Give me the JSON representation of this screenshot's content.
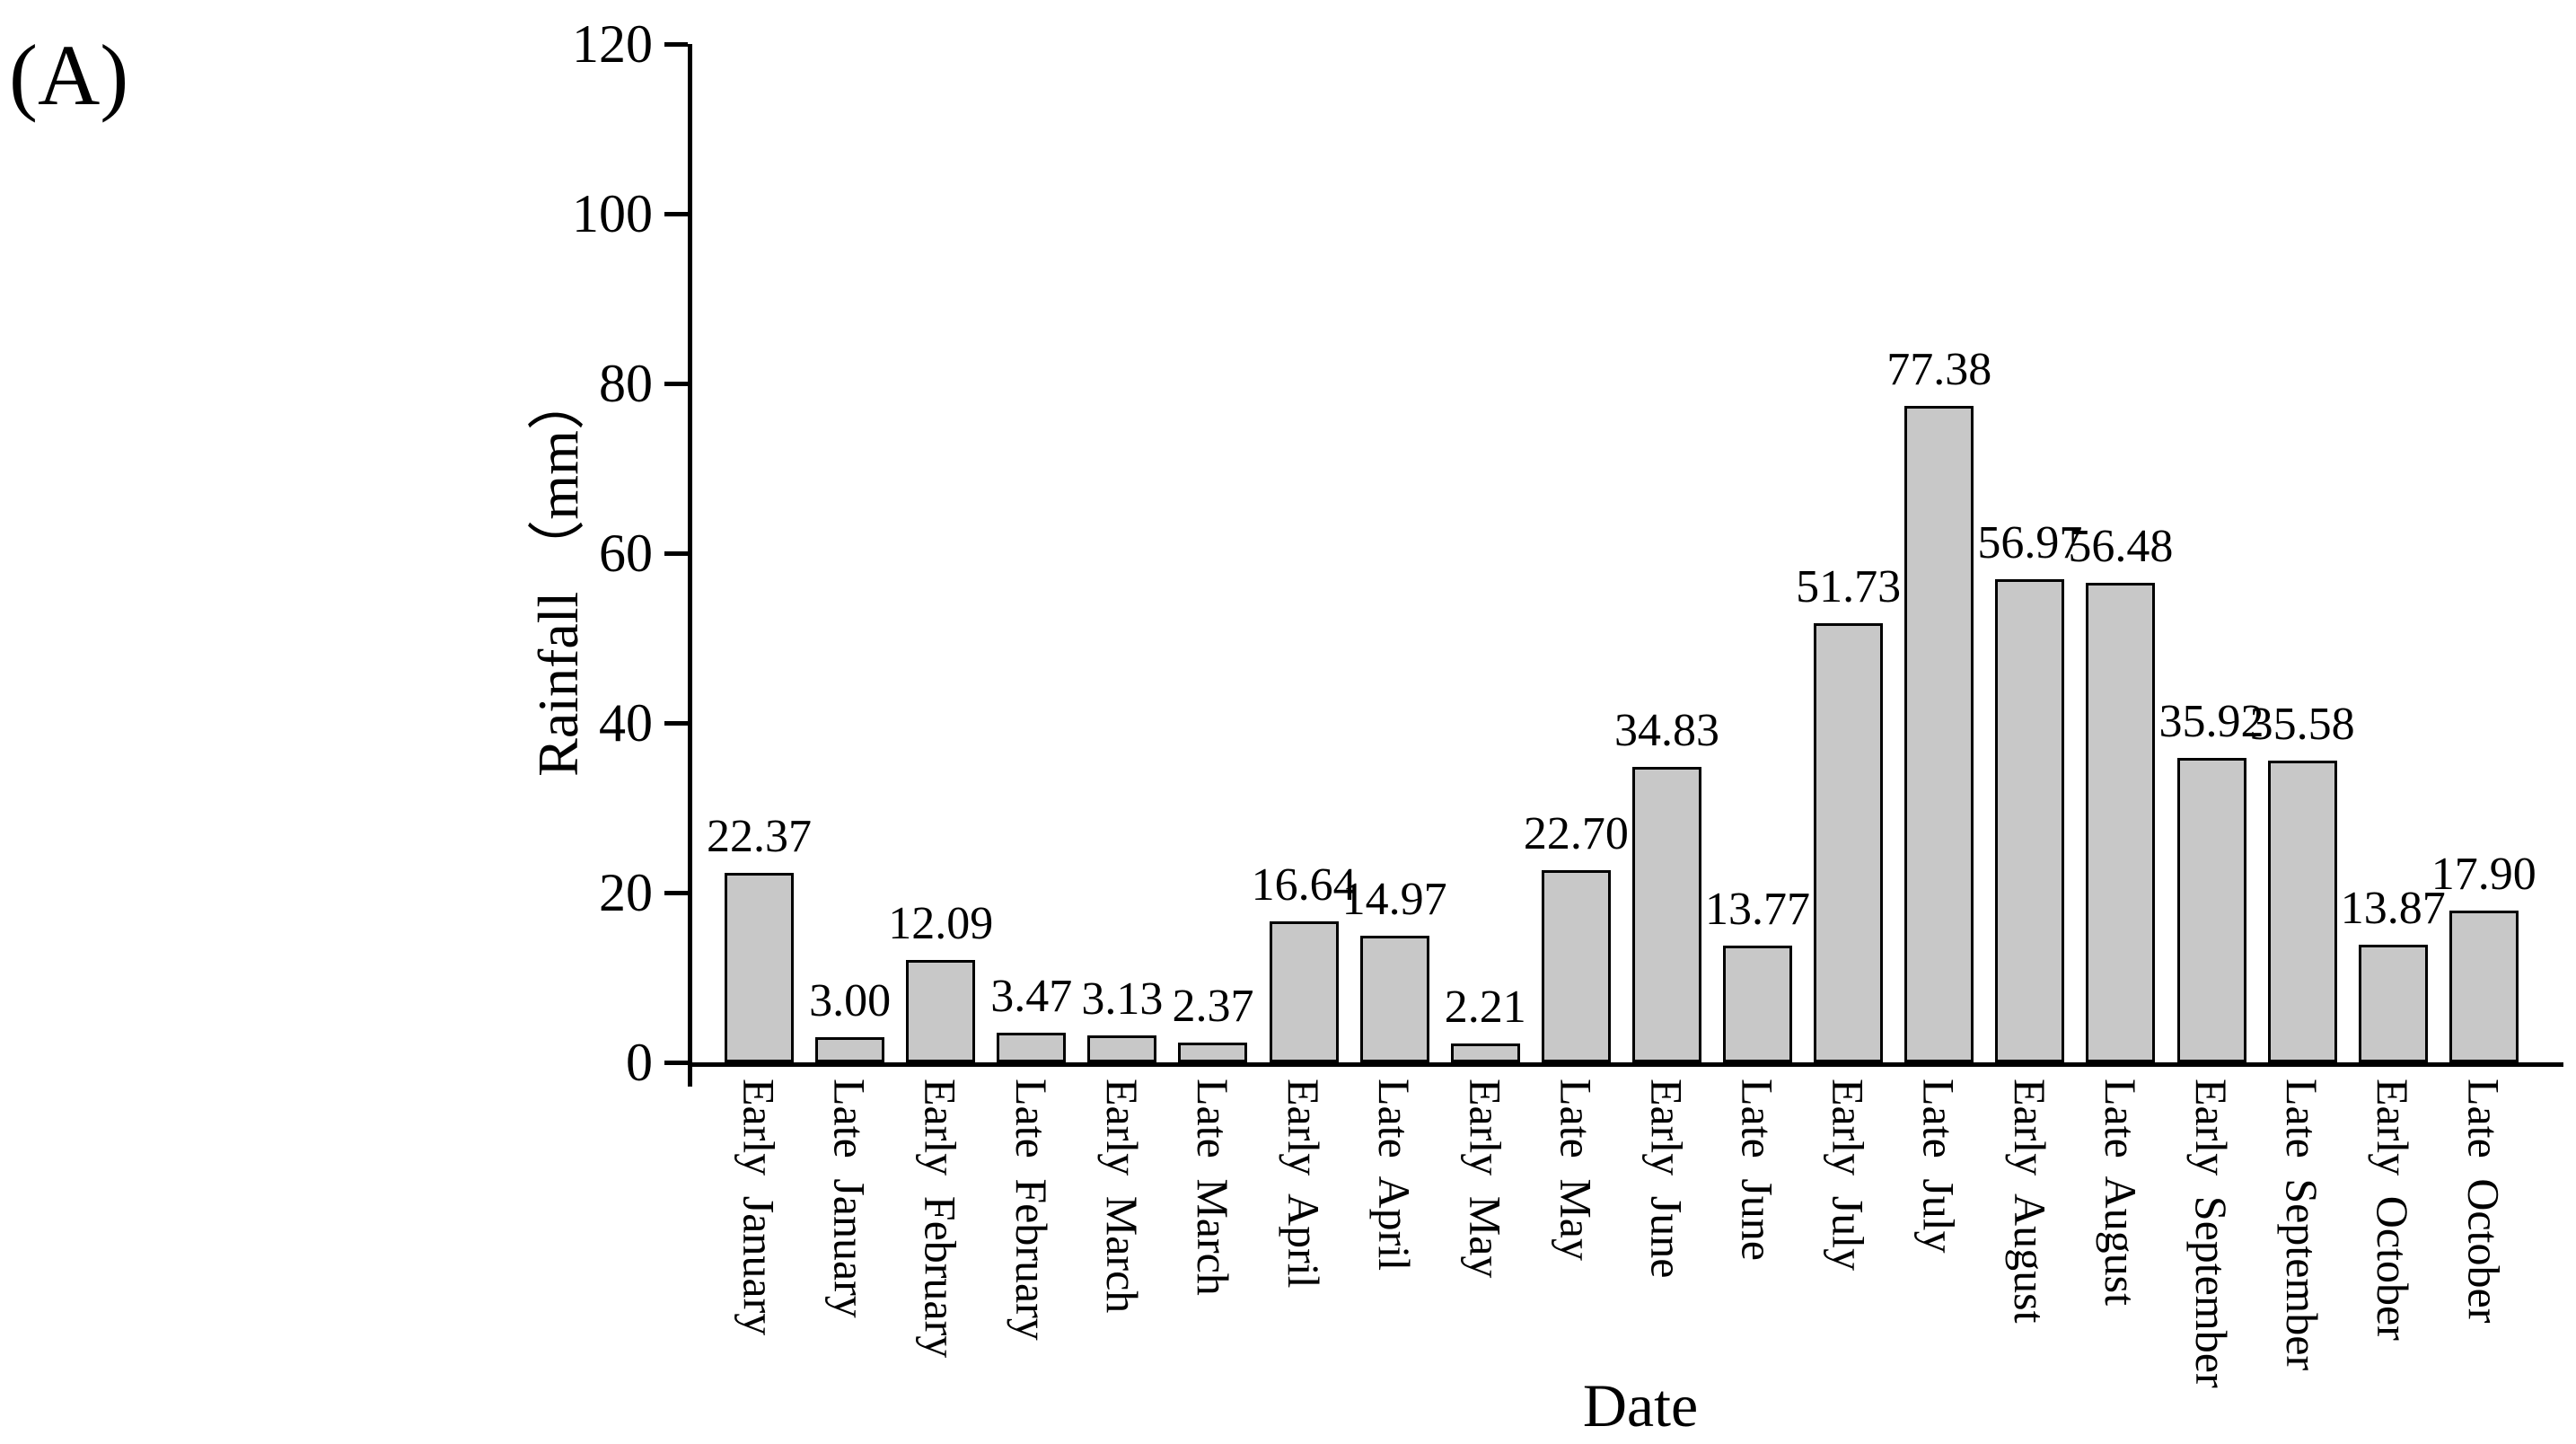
{
  "panel_label": "(A)",
  "chart_data": {
    "type": "bar",
    "title": "",
    "xlabel": "Date",
    "ylabel": "Rainfall （mm）",
    "ylim": [
      0,
      120
    ],
    "yticks": [
      0,
      20,
      40,
      60,
      80,
      100,
      120
    ],
    "grid": "off",
    "legend": "none",
    "bar_color": "#c8c8c8",
    "bar_border_color": "#000000",
    "axis_color": "#000000",
    "categories": [
      "Early January",
      "Late January",
      "Early February",
      "Late February",
      "Early March",
      "Late March",
      "Early April",
      "Late April",
      "Early May",
      "Late May",
      "Early June",
      "Late June",
      "Early July",
      "Late July",
      "Early August",
      "Late August",
      "Early September",
      "Late September",
      "Early October",
      "Late October"
    ],
    "values": [
      22.37,
      3.0,
      12.09,
      3.47,
      3.13,
      2.37,
      16.64,
      14.97,
      2.21,
      22.7,
      34.83,
      13.77,
      51.73,
      77.38,
      56.97,
      56.48,
      35.92,
      35.58,
      13.87,
      17.9
    ],
    "value_labels": [
      "22.37",
      "3.00",
      "12.09",
      "3.47",
      "3.13",
      "2.37",
      "16.64",
      "14.97",
      "2.21",
      "22.70",
      "34.83",
      "13.77",
      "51.73",
      "77.38",
      "56.97",
      "56.48",
      "35.92",
      "35.58",
      "13.87",
      "17.90"
    ]
  }
}
